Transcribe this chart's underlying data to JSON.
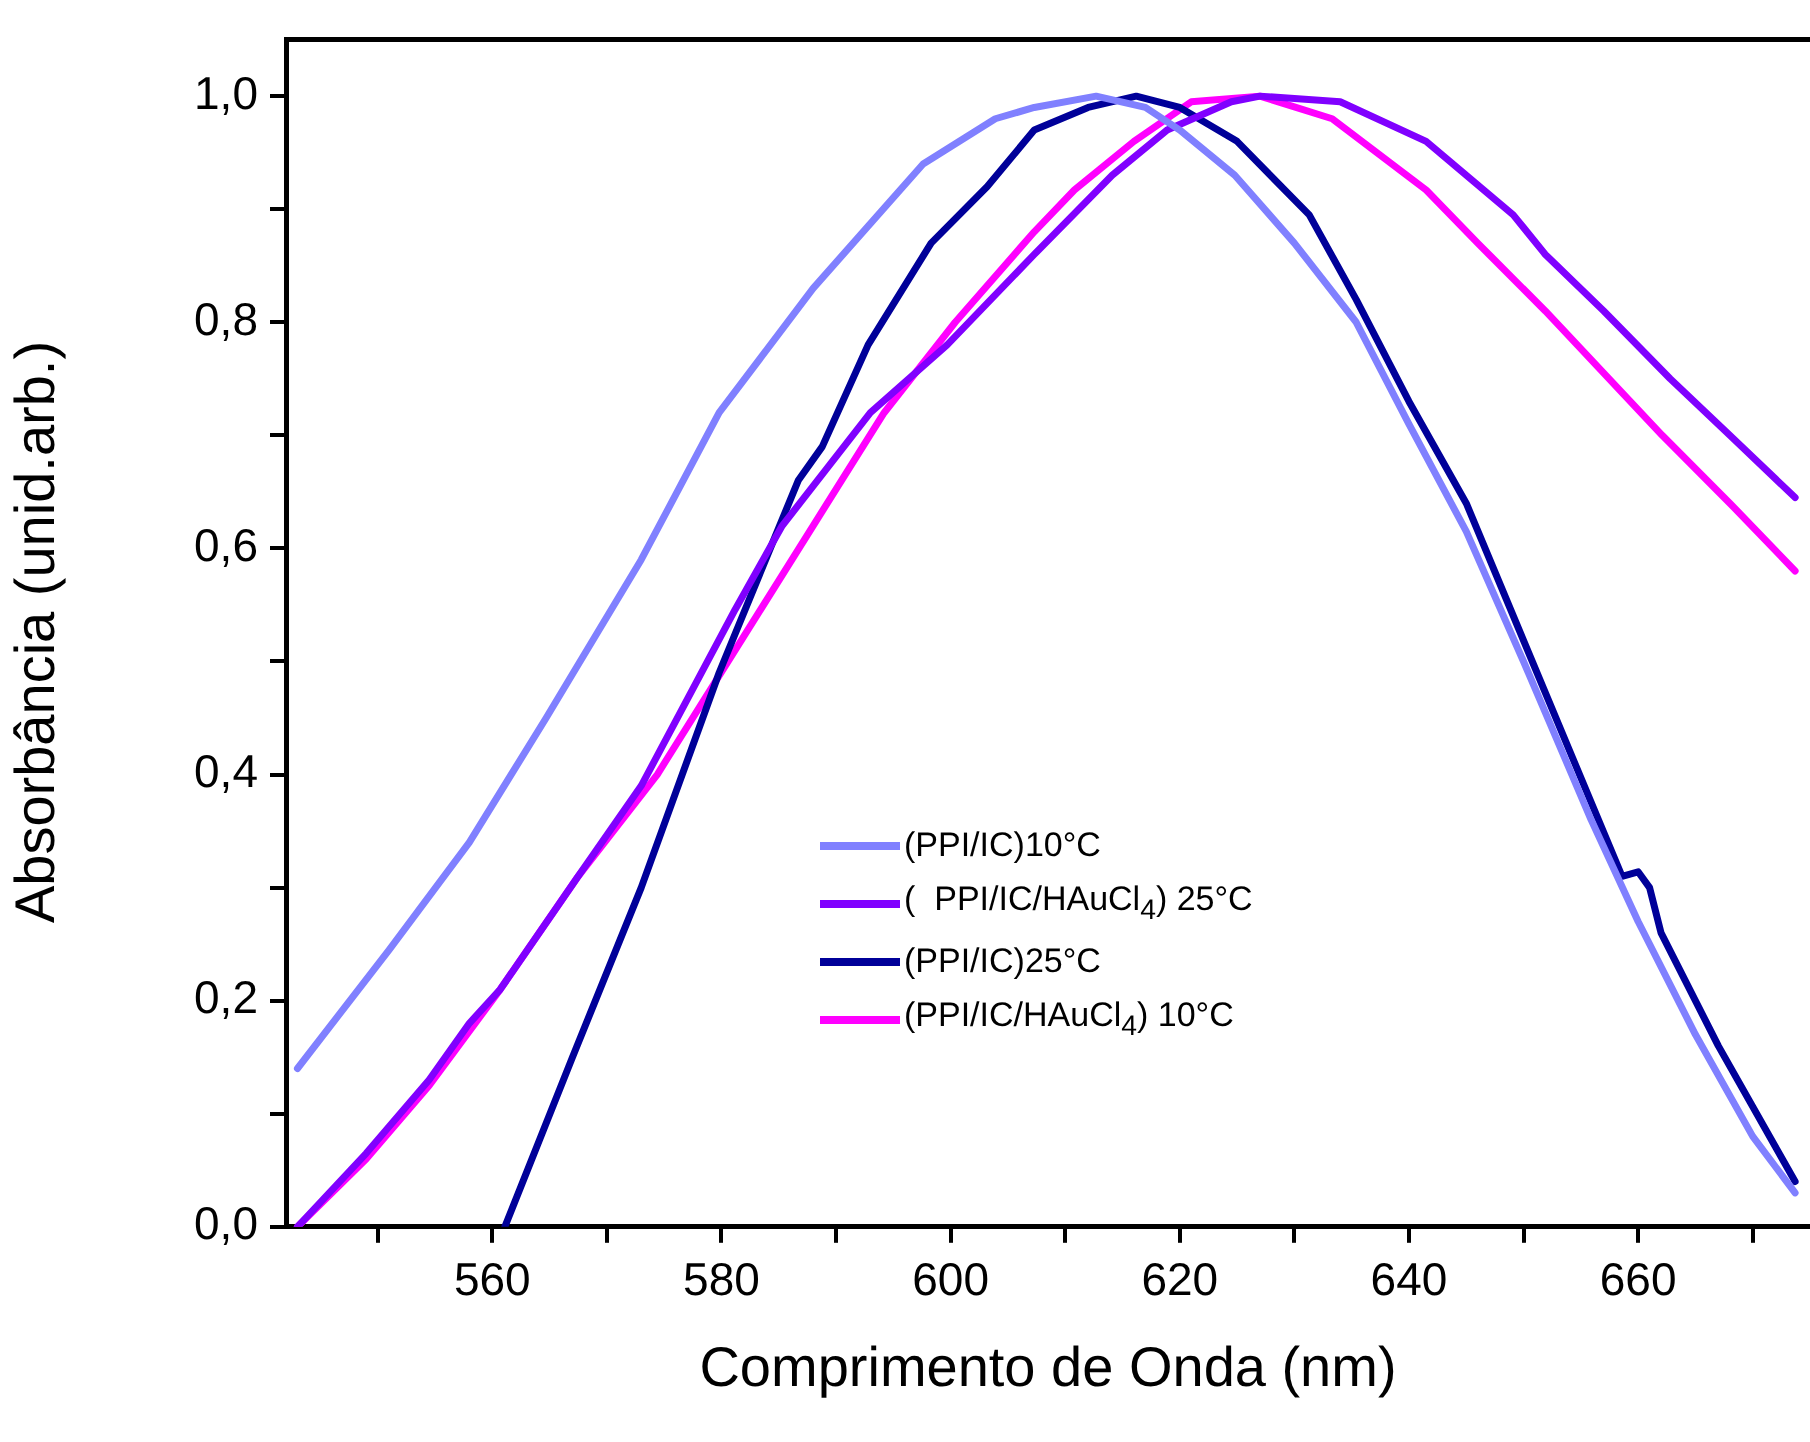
{
  "chart_data": {
    "type": "line",
    "xlabel": "Comprimento de Onda (nm)",
    "ylabel": "Absorbância (unid.arb.)",
    "xlim": [
      542,
      675
    ],
    "ylim": [
      0,
      1.05
    ],
    "xticks": [
      {
        "value": 550,
        "label": null
      },
      560,
      {
        "value": 570,
        "label": null
      },
      580,
      {
        "value": 590,
        "label": null
      },
      600,
      {
        "value": 610,
        "label": null
      },
      620,
      {
        "value": 630,
        "label": null
      },
      640,
      {
        "value": 650,
        "label": null
      },
      660,
      {
        "value": 670,
        "label": null
      }
    ],
    "yticks": [
      {
        "value": 0,
        "label": "0,0"
      },
      {
        "value": 0.1,
        "label": null
      },
      {
        "value": 0.2,
        "label": "0,2"
      },
      {
        "value": 0.3,
        "label": null
      },
      {
        "value": 0.4,
        "label": "0,4"
      },
      {
        "value": 0.5,
        "label": null
      },
      {
        "value": 0.6,
        "label": "0,6"
      },
      {
        "value": 0.7,
        "label": null
      },
      {
        "value": 0.8,
        "label": "0,8"
      },
      {
        "value": 0.9,
        "label": null
      },
      {
        "value": 1.0,
        "label": "1,0"
      }
    ],
    "grid": false,
    "legend": "bottom",
    "marker": "none",
    "line_style": "solid",
    "series": [
      {
        "name": "(PPI/IC)10°C",
        "color": "#8080ff",
        "x": [
          543,
          551,
          558,
          564.7,
          573,
          579.8,
          588,
          597.6,
          603.9,
          607.3,
          612.7,
          617,
          620,
          624.8,
          630,
          635.4,
          640,
          645,
          650,
          655.9,
          660,
          665,
          670,
          673.7
        ],
        "values": [
          0.14,
          0.245,
          0.34,
          0.45,
          0.59,
          0.72,
          0.83,
          0.94,
          0.98,
          0.99,
          1.0,
          0.99,
          0.97,
          0.93,
          0.87,
          0.8,
          0.71,
          0.615,
          0.5,
          0.36,
          0.27,
          0.17,
          0.08,
          0.03
        ]
      },
      {
        "name": "(  PPI/IC/HAuCl$_{4}$) 25°C",
        "color": "#8000ff",
        "x": [
          543,
          549,
          554.5,
          558,
          560.7,
          567.5,
          573,
          581.2,
          585.3,
          593,
          599.7,
          607.3,
          614.1,
          618.9,
          624.5,
          627,
          634,
          641.5,
          649.1,
          651.9,
          657,
          662.8,
          668,
          673.7
        ],
        "values": [
          0,
          0.065,
          0.13,
          0.18,
          0.21,
          0.31,
          0.39,
          0.546,
          0.62,
          0.72,
          0.78,
          0.86,
          0.93,
          0.97,
          0.995,
          1.0,
          0.995,
          0.96,
          0.895,
          0.86,
          0.81,
          0.75,
          0.7,
          0.645
        ]
      },
      {
        "name": "(PPI/IC)25°C",
        "color": "#000099",
        "x": [
          561.1,
          567,
          573,
          579.8,
          586.7,
          588.8,
          592.8,
          598.3,
          603.2,
          607.3,
          612,
          616.2,
          620,
          625,
          631.3,
          635.4,
          640,
          645,
          652,
          658.6,
          660,
          661,
          662,
          667,
          673.7
        ],
        "values": [
          0,
          0.15,
          0.3,
          0.49,
          0.66,
          0.69,
          0.78,
          0.87,
          0.92,
          0.97,
          0.99,
          1.0,
          0.99,
          0.96,
          0.895,
          0.82,
          0.73,
          0.64,
          0.47,
          0.31,
          0.314,
          0.3,
          0.26,
          0.16,
          0.04
        ]
      },
      {
        "name": "(PPI/IC/HAuCl$_{4}$) 10°C",
        "color": "#ff00ff",
        "x": [
          543,
          549,
          554.5,
          560.7,
          567.5,
          574.4,
          581.2,
          588,
          594.2,
          600.4,
          607.3,
          610.8,
          616,
          621,
          627,
          633.3,
          641.5,
          646,
          651.9,
          657,
          662.1,
          668,
          673.7
        ],
        "values": [
          0,
          0.06,
          0.125,
          0.21,
          0.31,
          0.4,
          0.51,
          0.62,
          0.72,
          0.8,
          0.88,
          0.917,
          0.96,
          0.995,
          1.0,
          0.98,
          0.917,
          0.87,
          0.81,
          0.755,
          0.7,
          0.64,
          0.58
        ]
      }
    ]
  }
}
